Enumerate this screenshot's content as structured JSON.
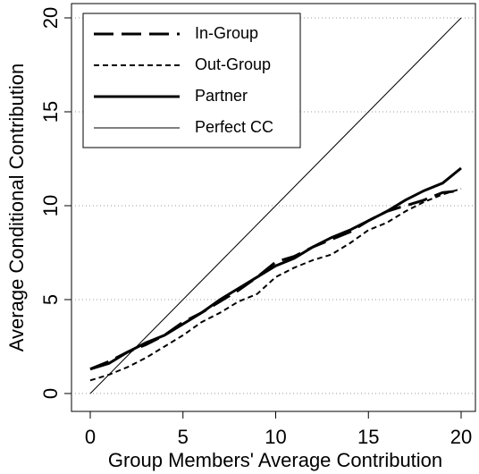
{
  "chart_data": {
    "type": "line",
    "x_label": "Group Members' Average Contribution",
    "y_label": "Average Conditional Contribution",
    "x": [
      0,
      1,
      2,
      3,
      4,
      5,
      6,
      7,
      8,
      9,
      10,
      11,
      12,
      13,
      14,
      15,
      16,
      17,
      18,
      19,
      20
    ],
    "series": [
      {
        "name": "In-Group",
        "color": "#000000",
        "dash": "long",
        "width": 3,
        "values": [
          1.3,
          1.7,
          2.2,
          2.6,
          3.1,
          3.8,
          4.3,
          4.9,
          5.5,
          6.2,
          7.0,
          7.3,
          7.8,
          8.2,
          8.6,
          9.2,
          9.7,
          10.0,
          10.3,
          10.7,
          10.8
        ]
      },
      {
        "name": "Out-Group",
        "color": "#000000",
        "dash": "short",
        "width": 2,
        "values": [
          0.7,
          1.0,
          1.4,
          1.9,
          2.5,
          3.1,
          3.8,
          4.3,
          4.9,
          5.3,
          6.2,
          6.7,
          7.1,
          7.4,
          8.0,
          8.7,
          9.1,
          9.7,
          10.2,
          10.6,
          10.9
        ]
      },
      {
        "name": "Partner",
        "color": "#000000",
        "dash": "solid",
        "width": 3,
        "values": [
          1.3,
          1.6,
          2.2,
          2.7,
          3.1,
          3.7,
          4.3,
          5.0,
          5.6,
          6.2,
          6.8,
          7.2,
          7.8,
          8.3,
          8.7,
          9.2,
          9.7,
          10.3,
          10.8,
          11.2,
          12.0
        ]
      },
      {
        "name": "Perfect CC",
        "color": "#000000",
        "dash": "solid",
        "width": 1,
        "values": [
          0,
          1,
          2,
          3,
          4,
          5,
          6,
          7,
          8,
          9,
          10,
          11,
          12,
          13,
          14,
          15,
          16,
          17,
          18,
          19,
          20
        ]
      }
    ],
    "xlim": [
      0,
      20
    ],
    "ylim": [
      0,
      20
    ],
    "xticks": [
      0,
      5,
      10,
      15,
      20
    ],
    "yticks": [
      0,
      5,
      10,
      15,
      20
    ],
    "grid": true,
    "legend": "top-left"
  }
}
